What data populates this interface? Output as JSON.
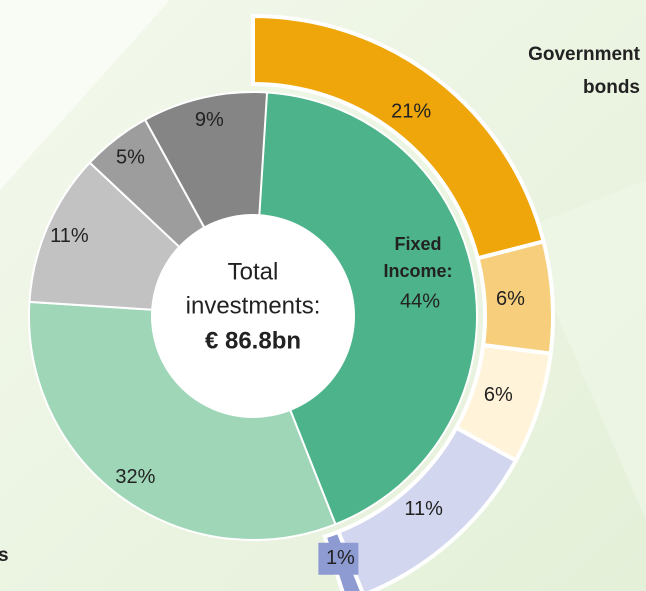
{
  "chart_data": {
    "type": "donut",
    "center_label": [
      "Total",
      "investments:"
    ],
    "total": "€ 86.8bn",
    "fixed_income_label": [
      "Fixed",
      "Income:"
    ],
    "rings": [
      {
        "values": [
          44,
          32,
          11,
          5,
          9
        ],
        "value_labels": [
          "44%",
          "32%",
          "11%",
          "5%",
          "9%"
        ],
        "colors": [
          "#4db38a",
          "#9fd6b8",
          "#c2c2c2",
          "#9d9d9d",
          "#858585"
        ]
      },
      {
        "values": [
          21,
          6,
          6,
          11,
          1
        ],
        "value_labels": [
          "21%",
          "6%",
          "6%",
          "11%",
          "1%"
        ],
        "colors": [
          "#eea60b",
          "#f7cf7c",
          "#fff3da",
          "#d3d6ef",
          "#8d9bd2"
        ]
      }
    ],
    "annotations": [
      [
        "Government",
        "bonds"
      ],
      [
        "s"
      ]
    ]
  }
}
